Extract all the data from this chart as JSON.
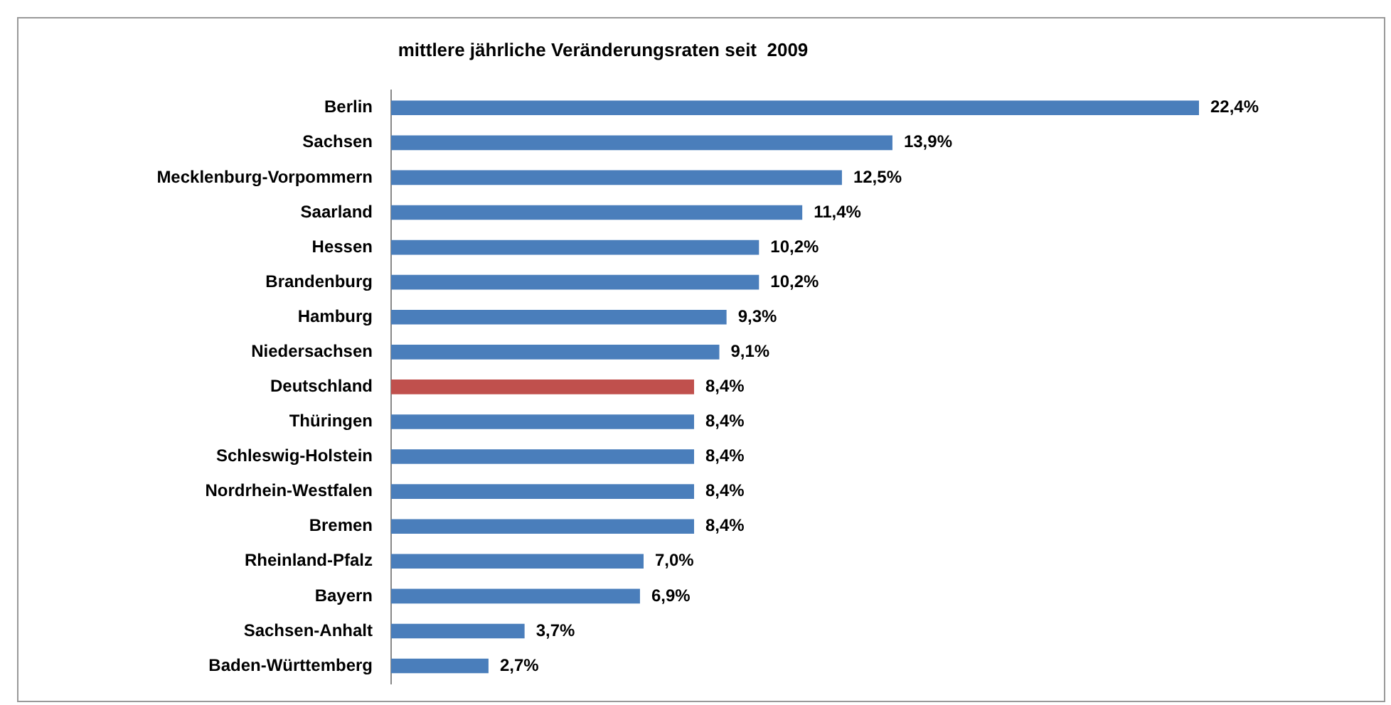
{
  "chart_data": {
    "type": "bar",
    "orientation": "horizontal",
    "title": "mittlere jährliche Veränderungsraten seit  2009",
    "categories": [
      "Berlin",
      "Sachsen",
      "Mecklenburg-Vorpommern",
      "Saarland",
      "Hessen",
      "Brandenburg",
      "Hamburg",
      "Niedersachsen",
      "Deutschland",
      "Thüringen",
      "Schleswig-Holstein",
      "Nordrhein-Westfalen",
      "Bremen",
      "Rheinland-Pfalz",
      "Bayern",
      "Sachsen-Anhalt",
      "Baden-Württemberg"
    ],
    "values": [
      22.4,
      13.9,
      12.5,
      11.4,
      10.2,
      10.2,
      9.3,
      9.1,
      8.4,
      8.4,
      8.4,
      8.4,
      8.4,
      7.0,
      6.9,
      3.7,
      2.7
    ],
    "colors": [
      "#4a7ebb",
      "#4a7ebb",
      "#4a7ebb",
      "#4a7ebb",
      "#4a7ebb",
      "#4a7ebb",
      "#4a7ebb",
      "#4a7ebb",
      "#c0504d",
      "#4a7ebb",
      "#4a7ebb",
      "#4a7ebb",
      "#4a7ebb",
      "#4a7ebb",
      "#4a7ebb",
      "#4a7ebb",
      "#4a7ebb"
    ],
    "value_labels": [
      "22,4%",
      "13,9%",
      "12,5%",
      "11,4%",
      "10,2%",
      "10,2%",
      "9,3%",
      "9,1%",
      "8,4%",
      "8,4%",
      "8,4%",
      "8,4%",
      "8,4%",
      "7,0%",
      "6,9%",
      "3,7%",
      "2,7%"
    ]
  }
}
